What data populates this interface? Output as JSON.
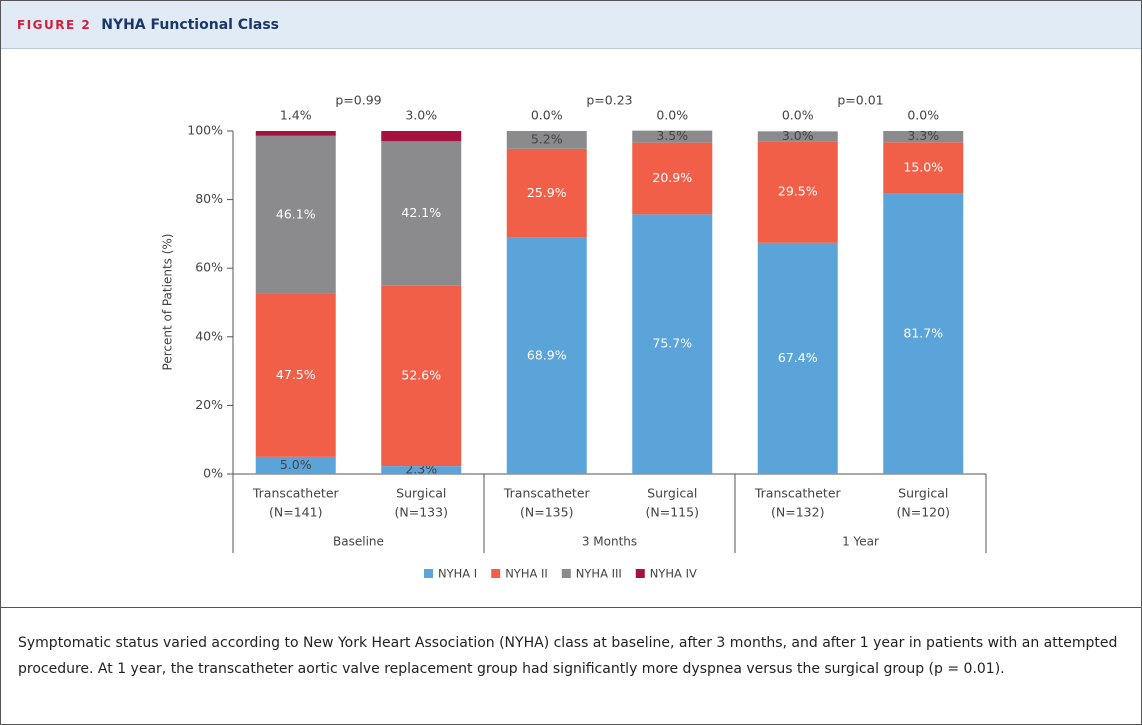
{
  "figure_label": "FIGURE 2",
  "chart_data": {
    "type": "stacked_bar",
    "title": "NYHA Functional Class",
    "y_label": "Percent of Patients (%)",
    "categories": [
      [
        "Transcatheter",
        "(N=141)"
      ],
      [
        "Surgical",
        "(N=133)"
      ],
      [
        "Transcatheter",
        "(N=135)"
      ],
      [
        "Surgical",
        "(N=115)"
      ],
      [
        "Transcatheter",
        "(N=132)"
      ],
      [
        "Surgical",
        "(N=120)"
      ]
    ],
    "groups": [
      {
        "label": "Baseline",
        "p_value": "p=0.99"
      },
      {
        "label": "3 Months",
        "p_value": "p=0.23"
      },
      {
        "label": "1 Year",
        "p_value": "p=0.01"
      }
    ],
    "series": [
      {
        "name": "NYHA I",
        "color": "#5ba4da",
        "values": [
          5.0,
          2.3,
          68.9,
          75.7,
          67.4,
          81.7
        ],
        "value_labels": [
          "5.0%",
          "2.3%",
          "68.9%",
          "75.7%",
          "67.4%",
          "81.7%"
        ]
      },
      {
        "name": "NYHA II",
        "color": "#f15f48",
        "values": [
          47.5,
          52.6,
          25.9,
          20.9,
          29.5,
          15.0
        ],
        "value_labels": [
          "47.5%",
          "52.6%",
          "25.9%",
          "20.9%",
          "29.5%",
          "15.0%"
        ]
      },
      {
        "name": "NYHA III",
        "color": "#8b8b8d",
        "values": [
          46.1,
          42.1,
          5.2,
          3.5,
          3.0,
          3.3
        ],
        "value_labels": [
          "46.1%",
          "42.1%",
          "5.2%",
          "3.5%",
          "3.0%",
          "3.3%"
        ]
      },
      {
        "name": "NYHA IV",
        "color": "#a6123f",
        "values": [
          1.4,
          3.0,
          0.0,
          0.0,
          0.0,
          0.0
        ],
        "value_labels": [
          "1.4%",
          "3.0%",
          "0.0%",
          "0.0%",
          "0.0%",
          "0.0%"
        ]
      }
    ],
    "ylim": [
      0,
      100
    ],
    "yticks": [
      {
        "value": 0,
        "label": "0%"
      },
      {
        "value": 20,
        "label": "20%"
      },
      {
        "value": 40,
        "label": "40%"
      },
      {
        "value": 60,
        "label": "60%"
      },
      {
        "value": 80,
        "label": "80%"
      },
      {
        "value": 100,
        "label": "100%"
      }
    ],
    "grid": false,
    "legend": "bottom"
  },
  "caption": "Symptomatic status varied according to New York Heart Association (NYHA) class at baseline, after 3 months, and after 1 year in patients with an attempted procedure. At 1 year, the transcatheter aortic valve replacement group had significantly more dyspnea versus the surgical group (p = 0.01)."
}
